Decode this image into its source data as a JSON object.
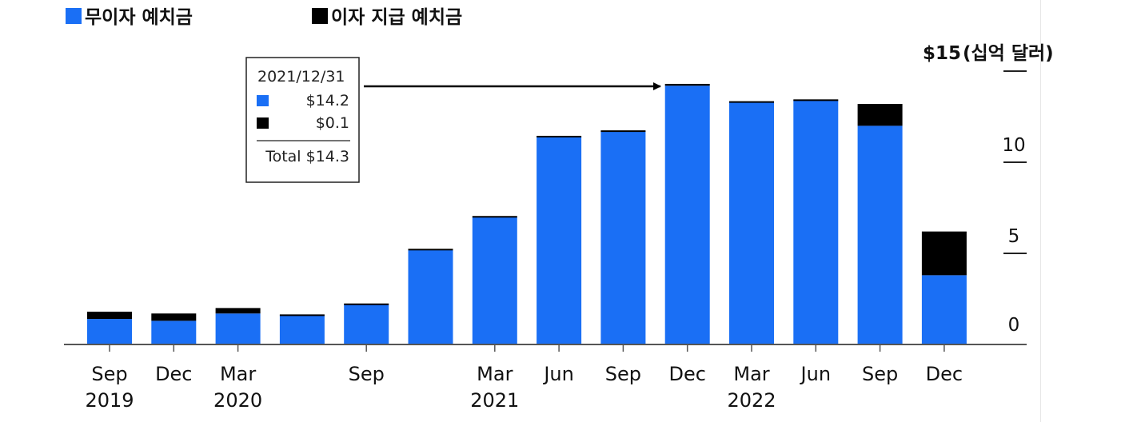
{
  "chart_data": {
    "type": "bar",
    "stacked": true,
    "categories": [
      "2019-09",
      "2019-12",
      "2020-03",
      "2020-06",
      "2020-09",
      "2020-12",
      "2021-03",
      "2021-06",
      "2021-09",
      "2021-12",
      "2022-03",
      "2022-06",
      "2022-09",
      "2022-12"
    ],
    "x_tick_labels": [
      {
        "index": 0,
        "month": "Sep",
        "year": "2019"
      },
      {
        "index": 1,
        "month": "Dec",
        "year": ""
      },
      {
        "index": 2,
        "month": "Mar",
        "year": "2020"
      },
      {
        "index": 4,
        "month": "Sep",
        "year": ""
      },
      {
        "index": 6,
        "month": "Mar",
        "year": "2021"
      },
      {
        "index": 7,
        "month": "Jun",
        "year": ""
      },
      {
        "index": 8,
        "month": "Sep",
        "year": ""
      },
      {
        "index": 9,
        "month": "Dec",
        "year": ""
      },
      {
        "index": 10,
        "month": "Mar",
        "year": "2022"
      },
      {
        "index": 11,
        "month": "Jun",
        "year": ""
      },
      {
        "index": 12,
        "month": "Sep",
        "year": ""
      },
      {
        "index": 13,
        "month": "Dec",
        "year": ""
      }
    ],
    "series": [
      {
        "name": "무이자 예치금",
        "color": "#1a6ff5",
        "values": [
          1.4,
          1.3,
          1.7,
          1.6,
          2.2,
          5.2,
          7.0,
          11.4,
          11.7,
          14.2,
          13.3,
          13.4,
          12.0,
          3.8
        ]
      },
      {
        "name": "이자 지급 예치금",
        "color": "#000000",
        "values": [
          0.4,
          0.4,
          0.3,
          0.05,
          0.05,
          0.05,
          0.05,
          0.05,
          0.05,
          0.1,
          0.05,
          0.05,
          1.2,
          2.4
        ]
      }
    ],
    "y_ticks": [
      {
        "value": 0,
        "label": "0"
      },
      {
        "value": 5,
        "label": "5"
      },
      {
        "value": 10,
        "label": "10"
      },
      {
        "value": 15,
        "label": "$15"
      }
    ],
    "y_unit": "(십억 달러)",
    "ylim": [
      0,
      15
    ],
    "legend_position": "top-left",
    "annotation": {
      "index": 9,
      "date": "2021/12/31",
      "rows": [
        {
          "color": "#1a6ff5",
          "value": "$14.2"
        },
        {
          "color": "#000000",
          "value": "$0.1"
        }
      ],
      "total": "Total $14.3"
    }
  }
}
